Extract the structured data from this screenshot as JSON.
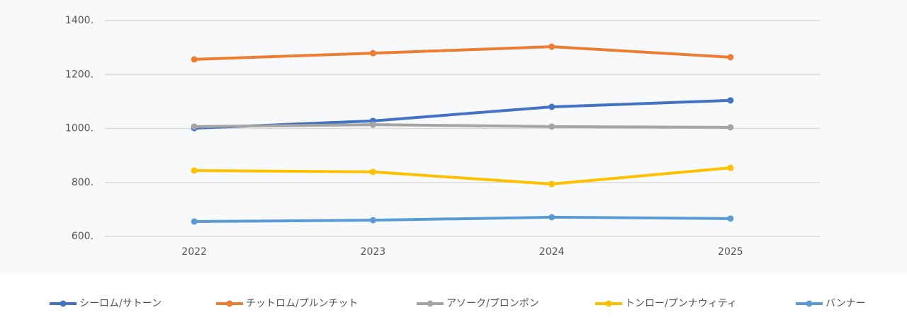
{
  "chart_data": {
    "type": "line",
    "categories": [
      "2022",
      "2023",
      "2024",
      "2025"
    ],
    "series": [
      {
        "name": "シーロム/サトーン",
        "color": "#4472c4",
        "values": [
          1001,
          1028,
          1080,
          1104
        ]
      },
      {
        "name": "チットロム/プルンチット",
        "color": "#ed7d31",
        "values": [
          1256,
          1279,
          1303,
          1264
        ]
      },
      {
        "name": "アソーク/プロンポン",
        "color": "#a5a5a5",
        "values": [
          1007,
          1014,
          1007,
          1004
        ]
      },
      {
        "name": "トンロー/プンナウィティ",
        "color": "#ffc000",
        "values": [
          844,
          839,
          794,
          854
        ]
      },
      {
        "name": "バンナー",
        "color": "#5b9bd5",
        "values": [
          655,
          660,
          671,
          666
        ]
      }
    ],
    "ylim": [
      600,
      1400
    ],
    "yticks": [
      {
        "value": 600,
        "label": "600."
      },
      {
        "value": 800,
        "label": "800."
      },
      {
        "value": 1000,
        "label": "1000."
      },
      {
        "value": 1200,
        "label": "1200."
      },
      {
        "value": 1400,
        "label": "1400."
      }
    ],
    "grid": true
  }
}
